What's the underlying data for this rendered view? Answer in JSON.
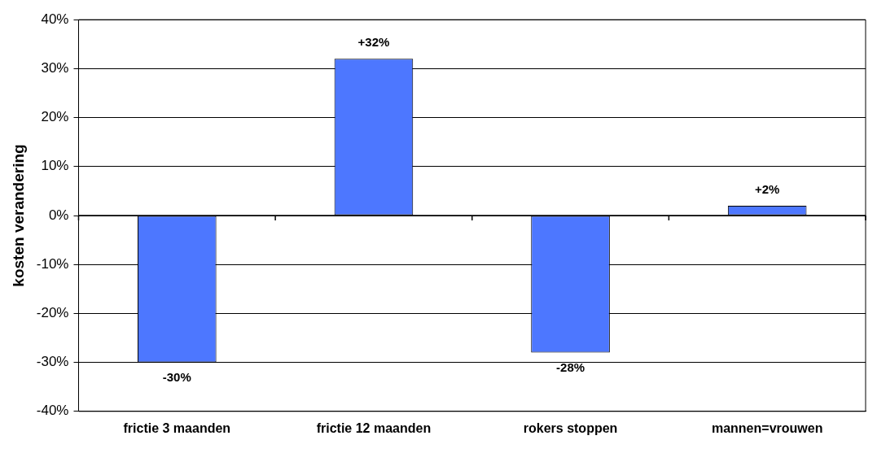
{
  "chart_data": {
    "type": "bar",
    "ylabel": "kosten verandering",
    "categories": [
      "frictie 3 maanden",
      "frictie 12 maanden",
      "rokers stoppen",
      "mannen=vrouwen"
    ],
    "values": [
      -30,
      32,
      -28,
      2
    ],
    "value_labels": [
      "-30%",
      "+32%",
      "-28%",
      "+2%"
    ],
    "color": "#4d77ff",
    "ylim": [
      -40,
      40
    ],
    "yticks": [
      {
        "value": -40,
        "label": "-40%"
      },
      {
        "value": -30,
        "label": "-30%"
      },
      {
        "value": -20,
        "label": "-20%"
      },
      {
        "value": -10,
        "label": "-10%"
      },
      {
        "value": 0,
        "label": "0%"
      },
      {
        "value": 10,
        "label": "10%"
      },
      {
        "value": 20,
        "label": "20%"
      },
      {
        "value": 30,
        "label": "30%"
      },
      {
        "value": 40,
        "label": "40%"
      }
    ],
    "grid": "y"
  }
}
